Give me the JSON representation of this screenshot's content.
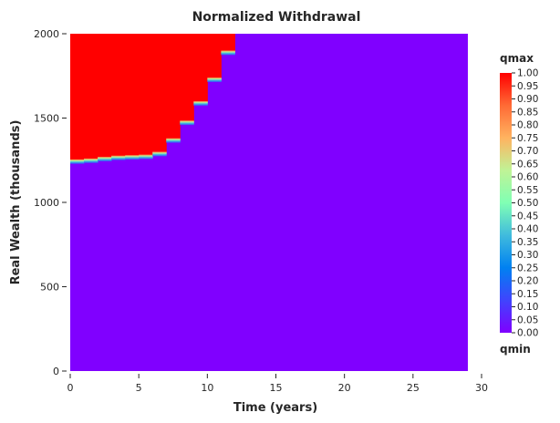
{
  "chart_data": {
    "type": "heatmap",
    "title": "Normalized Withdrawal",
    "xlabel": "Time (years)",
    "ylabel": "Real Wealth (thousands)",
    "xlim": [
      0,
      30
    ],
    "ylim": [
      0,
      2000
    ],
    "x_data_max": 29,
    "xticks": [
      0,
      5,
      10,
      15,
      20,
      25,
      30
    ],
    "yticks": [
      0,
      500,
      1000,
      1500,
      2000
    ],
    "colormap": "rainbow",
    "low_color": "#8000ff",
    "high_color": "#ff0000",
    "boundary": [
      {
        "t_start": 0,
        "t_end": 1,
        "wealth": 1250
      },
      {
        "t_start": 1,
        "t_end": 2,
        "wealth": 1255
      },
      {
        "t_start": 2,
        "t_end": 3,
        "wealth": 1265
      },
      {
        "t_start": 3,
        "t_end": 4,
        "wealth": 1272
      },
      {
        "t_start": 4,
        "t_end": 5,
        "wealth": 1275
      },
      {
        "t_start": 5,
        "t_end": 6,
        "wealth": 1278
      },
      {
        "t_start": 6,
        "t_end": 7,
        "wealth": 1295
      },
      {
        "t_start": 7,
        "t_end": 8,
        "wealth": 1375
      },
      {
        "t_start": 8,
        "t_end": 9,
        "wealth": 1480
      },
      {
        "t_start": 9,
        "t_end": 10,
        "wealth": 1595
      },
      {
        "t_start": 10,
        "t_end": 11,
        "wealth": 1735
      },
      {
        "t_start": 11,
        "t_end": 12,
        "wealth": 1895
      },
      {
        "t_start": 12,
        "t_end": 29,
        "wealth": 2000
      }
    ],
    "colorbar": {
      "top_label": "qmax",
      "bottom_label": "qmin",
      "range": [
        0,
        1
      ],
      "ticks": [
        "1.00",
        "0.95",
        "0.90",
        "0.85",
        "0.80",
        "0.75",
        "0.70",
        "0.65",
        "0.60",
        "0.55",
        "0.50",
        "0.45",
        "0.40",
        "0.35",
        "0.30",
        "0.25",
        "0.20",
        "0.15",
        "0.10",
        "0.05",
        "0.00"
      ]
    }
  }
}
